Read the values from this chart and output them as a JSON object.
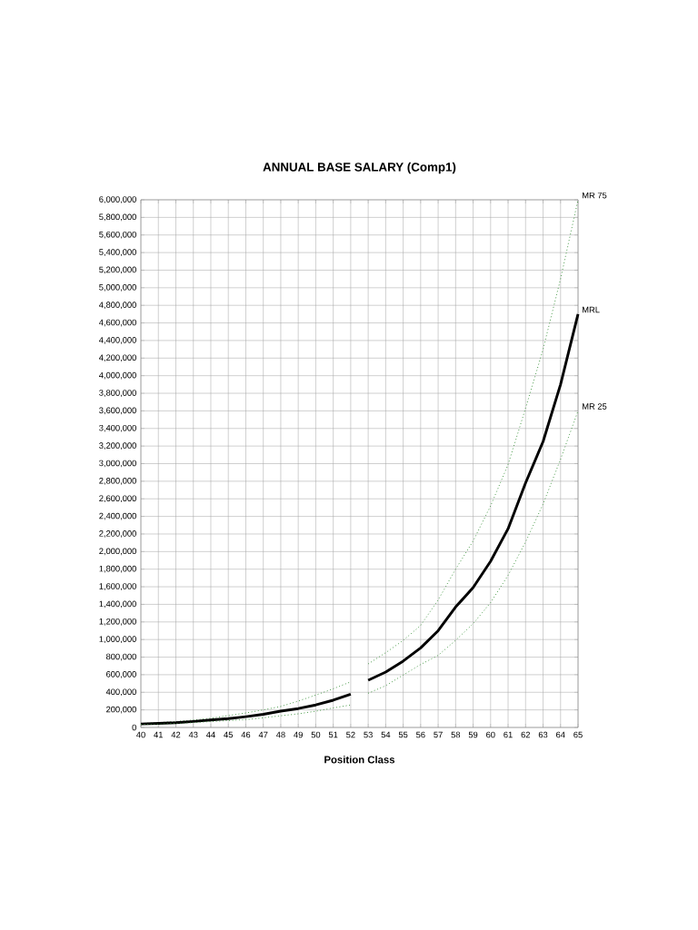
{
  "chart_data": {
    "type": "line",
    "title": "ANNUAL BASE SALARY (Comp1)",
    "xlabel": "Position Class",
    "xlim": [
      40,
      65
    ],
    "xticks": [
      40,
      41,
      42,
      43,
      44,
      45,
      46,
      47,
      48,
      49,
      50,
      51,
      52,
      53,
      54,
      55,
      56,
      57,
      58,
      59,
      60,
      61,
      62,
      63,
      64,
      65
    ],
    "ylim": [
      0,
      6000000
    ],
    "yticks": [
      {
        "value": 0,
        "label": "0"
      },
      {
        "value": 200000,
        "label": "200,000"
      },
      {
        "value": 400000,
        "label": "400,000"
      },
      {
        "value": 600000,
        "label": "600,000"
      },
      {
        "value": 800000,
        "label": "800,000"
      },
      {
        "value": 1000000,
        "label": "1,000,000"
      },
      {
        "value": 1200000,
        "label": "1,200,000"
      },
      {
        "value": 1400000,
        "label": "1,400,000"
      },
      {
        "value": 1600000,
        "label": "1,600,000"
      },
      {
        "value": 1800000,
        "label": "1,800,000"
      },
      {
        "value": 2000000,
        "label": "2,000,000"
      },
      {
        "value": 2200000,
        "label": "2,200,000"
      },
      {
        "value": 2400000,
        "label": "2,400,000"
      },
      {
        "value": 2600000,
        "label": "2,600,000"
      },
      {
        "value": 2800000,
        "label": "2,800,000"
      },
      {
        "value": 3000000,
        "label": "3,000,000"
      },
      {
        "value": 3200000,
        "label": "3,200,000"
      },
      {
        "value": 3400000,
        "label": "3,400,000"
      },
      {
        "value": 3600000,
        "label": "3,600,000"
      },
      {
        "value": 3800000,
        "label": "3,800,000"
      },
      {
        "value": 4000000,
        "label": "4,000,000"
      },
      {
        "value": 4200000,
        "label": "4,200,000"
      },
      {
        "value": 4400000,
        "label": "4,400,000"
      },
      {
        "value": 4600000,
        "label": "4,600,000"
      },
      {
        "value": 4800000,
        "label": "4,800,000"
      },
      {
        "value": 5000000,
        "label": "5,000,000"
      },
      {
        "value": 5200000,
        "label": "5,200,000"
      },
      {
        "value": 5400000,
        "label": "5,400,000"
      },
      {
        "value": 5600000,
        "label": "5,600,000"
      },
      {
        "value": 5800000,
        "label": "5,800,000"
      },
      {
        "value": 6000000,
        "label": "6,000,000"
      }
    ],
    "grid": true,
    "legend": false,
    "marker": "none",
    "series": [
      {
        "color": "#2e8b2e",
        "line_style": "dotted",
        "x": [
          40,
          41,
          42,
          43,
          44,
          45,
          46,
          47,
          48,
          49,
          50,
          51,
          52
        ],
        "values": [
          45000,
          55000,
          68000,
          85000,
          105000,
          135000,
          165000,
          200000,
          239000,
          300000,
          368000,
          440000,
          519000
        ]
      },
      {
        "name": "MR 75",
        "color": "#2e8b2e",
        "line_style": "dotted",
        "x": [
          53,
          54,
          55,
          56,
          57,
          58,
          59,
          60,
          61,
          62,
          63,
          64,
          65
        ],
        "values": [
          723000,
          850000,
          990000,
          1160000,
          1450000,
          1800000,
          2120000,
          2520000,
          2990000,
          3630000,
          4300000,
          5100000,
          6000000
        ]
      },
      {
        "color": "#000000",
        "line_style": "solid",
        "x": [
          40,
          41,
          42,
          43,
          44,
          45,
          46,
          47,
          48,
          49,
          50,
          51,
          52
        ],
        "values": [
          40000,
          46000,
          54000,
          68000,
          85000,
          100000,
          123000,
          150000,
          186000,
          215000,
          256000,
          310000,
          379000
        ]
      },
      {
        "name": "MRL",
        "color": "#000000",
        "line_style": "solid",
        "x": [
          53,
          54,
          55,
          56,
          57,
          58,
          59,
          60,
          61,
          62,
          63,
          64,
          65
        ],
        "values": [
          537000,
          630000,
          755000,
          905000,
          1100000,
          1370000,
          1590000,
          1890000,
          2260000,
          2780000,
          3250000,
          3900000,
          4700000
        ]
      },
      {
        "color": "#2e8b2e",
        "line_style": "dotted",
        "x": [
          40,
          41,
          42,
          43,
          44,
          45,
          46,
          47,
          48,
          49,
          50,
          51,
          52
        ],
        "values": [
          35000,
          40000,
          47000,
          55000,
          68000,
          78000,
          90000,
          110000,
          133000,
          155000,
          185000,
          222000,
          256000
        ]
      },
      {
        "name": "MR 25",
        "color": "#2e8b2e",
        "line_style": "dotted",
        "x": [
          53,
          54,
          55,
          56,
          57,
          58,
          59,
          60,
          61,
          62,
          63,
          64,
          65
        ],
        "values": [
          389000,
          475000,
          596000,
          716000,
          820000,
          991000,
          1180000,
          1420000,
          1730000,
          2110000,
          2540000,
          3050000,
          3600000
        ]
      }
    ]
  }
}
